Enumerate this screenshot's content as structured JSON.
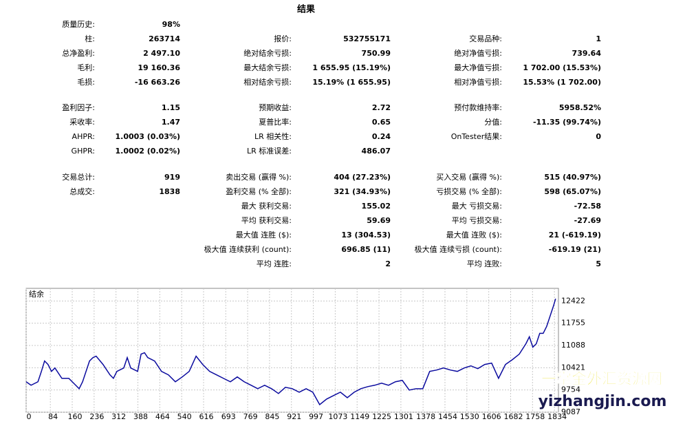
{
  "title": "结果",
  "sections": [
    [
      [
        {
          "label": "质量历史:",
          "value": "98%"
        },
        null,
        null
      ],
      [
        {
          "label": "柱:",
          "value": "263714"
        },
        {
          "label": "报价:",
          "value": "532755171"
        },
        {
          "label": "交易品种:",
          "value": "1"
        }
      ],
      [
        {
          "label": "总净盈利:",
          "value": "2 497.10"
        },
        {
          "label": "绝对结余亏损:",
          "value": "750.99"
        },
        {
          "label": "绝对净值亏损:",
          "value": "739.64"
        }
      ],
      [
        {
          "label": "毛利:",
          "value": "19 160.36"
        },
        {
          "label": "最大结余亏损:",
          "value": "1 655.95 (15.19%)"
        },
        {
          "label": "最大净值亏损:",
          "value": "1 702.00 (15.53%)"
        }
      ],
      [
        {
          "label": "毛损:",
          "value": "-16 663.26"
        },
        {
          "label": "相对结余亏损:",
          "value": "15.19% (1 655.95)"
        },
        {
          "label": "相对净值亏损:",
          "value": "15.53% (1 702.00)"
        }
      ]
    ],
    [
      [
        {
          "label": "盈利因子:",
          "value": "1.15"
        },
        {
          "label": "预期收益:",
          "value": "2.72"
        },
        {
          "label": "预付款维持率:",
          "value": "5958.52%"
        }
      ],
      [
        {
          "label": "采收率:",
          "value": "1.47"
        },
        {
          "label": "夏普比率:",
          "value": "0.65"
        },
        {
          "label": "分值:",
          "value": "-11.35 (99.74%)"
        }
      ],
      [
        {
          "label": "AHPR:",
          "value": "1.0003 (0.03%)"
        },
        {
          "label": "LR 相关性:",
          "value": "0.24"
        },
        {
          "label": "OnTester结果:",
          "value": "0"
        }
      ],
      [
        {
          "label": "GHPR:",
          "value": "1.0002 (0.02%)"
        },
        {
          "label": "LR 标准误差:",
          "value": "486.07"
        },
        null
      ]
    ],
    [
      [
        {
          "label": "交易总计:",
          "value": "919"
        },
        {
          "label": "卖出交易 (赢得 %):",
          "value": "404 (27.23%)"
        },
        {
          "label": "买入交易 (赢得 %):",
          "value": "515 (40.97%)"
        }
      ],
      [
        {
          "label": "总成交:",
          "value": "1838"
        },
        {
          "label": "盈利交易 (% 全部):",
          "value": "321 (34.93%)"
        },
        {
          "label": "亏损交易 (% 全部):",
          "value": "598 (65.07%)"
        }
      ],
      [
        null,
        {
          "label": "最大 获利交易:",
          "value": "155.02"
        },
        {
          "label": "最大 亏损交易:",
          "value": "-72.58"
        }
      ],
      [
        null,
        {
          "label": "平均 获利交易:",
          "value": "59.69"
        },
        {
          "label": "平均 亏损交易:",
          "value": "-27.69"
        }
      ],
      [
        null,
        {
          "label": "最大值 连胜 ($):",
          "value": "13 (304.53)"
        },
        {
          "label": "最大值 连败 ($):",
          "value": "21 (-619.19)"
        }
      ],
      [
        null,
        {
          "label": "极大值 连续获利 (count):",
          "value": "696.85 (11)"
        },
        {
          "label": "极大值 连续亏损 (count):",
          "value": "-619.19 (21)"
        }
      ],
      [
        null,
        {
          "label": "平均 连胜:",
          "value": "2"
        },
        {
          "label": "平均 连败:",
          "value": "5"
        }
      ]
    ]
  ],
  "chart": {
    "type": "line",
    "label": "结余",
    "color": "#0a0a9e",
    "grid": true,
    "xlim": [
      0,
      1848
    ],
    "ylim": [
      9087,
      12800
    ],
    "xticks": [
      0,
      84,
      160,
      236,
      312,
      388,
      464,
      540,
      616,
      693,
      769,
      845,
      921,
      997,
      1073,
      1149,
      1225,
      1301,
      1378,
      1454,
      1530,
      1606,
      1682,
      1758,
      1834
    ],
    "yticks": [
      9087,
      9754,
      10421,
      11088,
      11755,
      12422
    ],
    "x": [
      0,
      17,
      41,
      53,
      64,
      76,
      88,
      100,
      124,
      148,
      172,
      184,
      196,
      208,
      220,
      232,
      243,
      267,
      291,
      303,
      315,
      339,
      351,
      363,
      387,
      399,
      411,
      422,
      446,
      470,
      494,
      518,
      542,
      566,
      590,
      613,
      637,
      661,
      685,
      709,
      733,
      757,
      781,
      804,
      828,
      852,
      876,
      900,
      924,
      948,
      972,
      995,
      1019,
      1043,
      1067,
      1091,
      1115,
      1139,
      1162,
      1186,
      1210,
      1234,
      1258,
      1282,
      1306,
      1330,
      1353,
      1377,
      1401,
      1425,
      1449,
      1473,
      1497,
      1521,
      1544,
      1568,
      1592,
      1616,
      1640,
      1664,
      1688,
      1712,
      1735,
      1747,
      1759,
      1771,
      1783,
      1795,
      1807,
      1819,
      1831,
      1838
    ],
    "values": [
      10000,
      9896,
      10000,
      10311,
      10622,
      10518,
      10311,
      10414,
      10103,
      10103,
      9896,
      9792,
      10000,
      10311,
      10622,
      10725,
      10767,
      10518,
      10207,
      10103,
      10311,
      10414,
      10725,
      10414,
      10311,
      10829,
      10871,
      10725,
      10622,
      10311,
      10207,
      10000,
      10145,
      10311,
      10767,
      10518,
      10311,
      10207,
      10103,
      10000,
      10145,
      10000,
      9896,
      9792,
      9896,
      9792,
      9647,
      9834,
      9792,
      9688,
      9792,
      9688,
      9315,
      9481,
      9585,
      9688,
      9523,
      9688,
      9792,
      9854,
      9896,
      9958,
      9896,
      10000,
      10041,
      9751,
      9792,
      9792,
      10311,
      10352,
      10414,
      10352,
      10311,
      10414,
      10477,
      10394,
      10518,
      10560,
      10103,
      10518,
      10663,
      10829,
      11140,
      11348,
      11037,
      11140,
      11451,
      11451,
      11659,
      11970,
      12281,
      12488
    ]
  },
  "watermark": {
    "title": "一掌金外汇资源网",
    "site": "yizhangjin.com"
  }
}
